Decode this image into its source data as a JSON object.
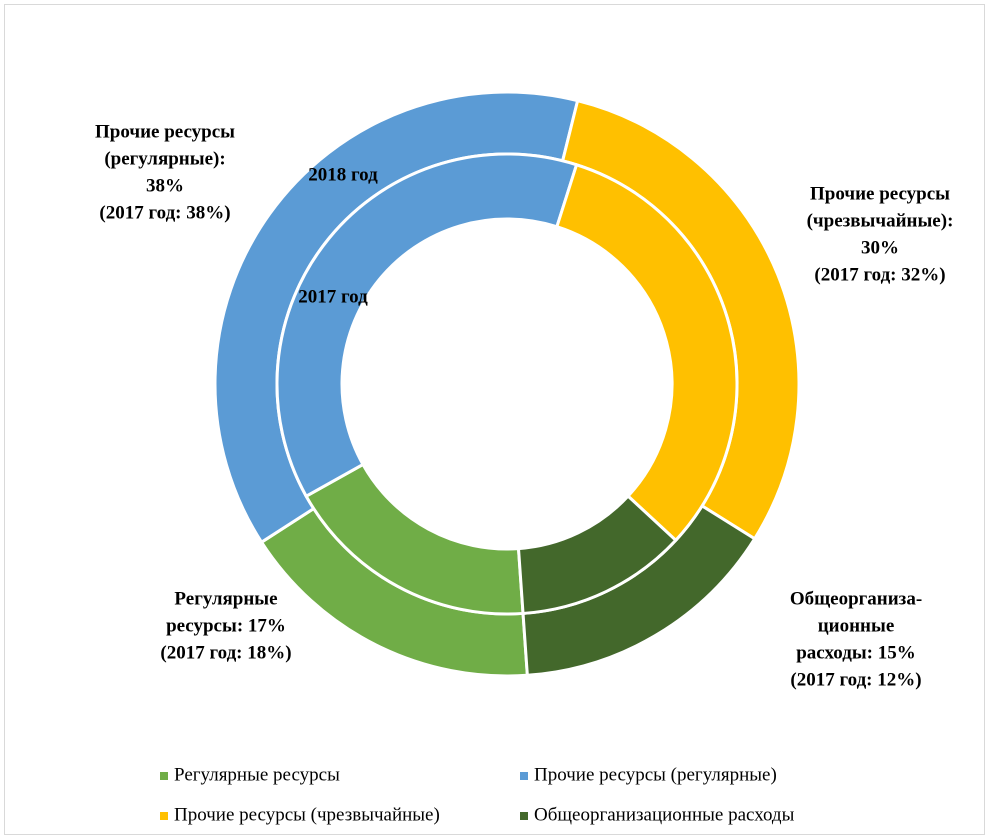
{
  "chart_data": {
    "type": "doughnut",
    "categories": [
      "Регулярные ресурсы",
      "Прочие ресурсы (регулярные)",
      "Прочие ресурсы (чрезвычайные)",
      "Общеорганизационные расходы"
    ],
    "colors": [
      "#70ad47",
      "#5b9bd5",
      "#ffc000",
      "#43682b"
    ],
    "series": [
      {
        "name": "2018 год",
        "values": [
          17,
          38,
          30,
          15
        ]
      },
      {
        "name": "2017 год",
        "values": [
          18,
          38,
          32,
          12
        ]
      }
    ],
    "annotations": [
      {
        "lines": [
          "Регулярные",
          "ресурсы: 17%",
          "(2017 год: 18%)"
        ]
      },
      {
        "lines": [
          "Прочие ресурсы",
          "(регулярные):",
          "38%",
          "(2017 год: 38%)"
        ]
      },
      {
        "lines": [
          "Прочие ресурсы",
          "(чрезвычайные):",
          "30%",
          "(2017 год: 32%)"
        ]
      },
      {
        "lines": [
          "Общеорганиза-",
          "ционные",
          "расходы: 15%",
          "(2017 год: 12%)"
        ]
      }
    ],
    "legend": "bottom"
  }
}
